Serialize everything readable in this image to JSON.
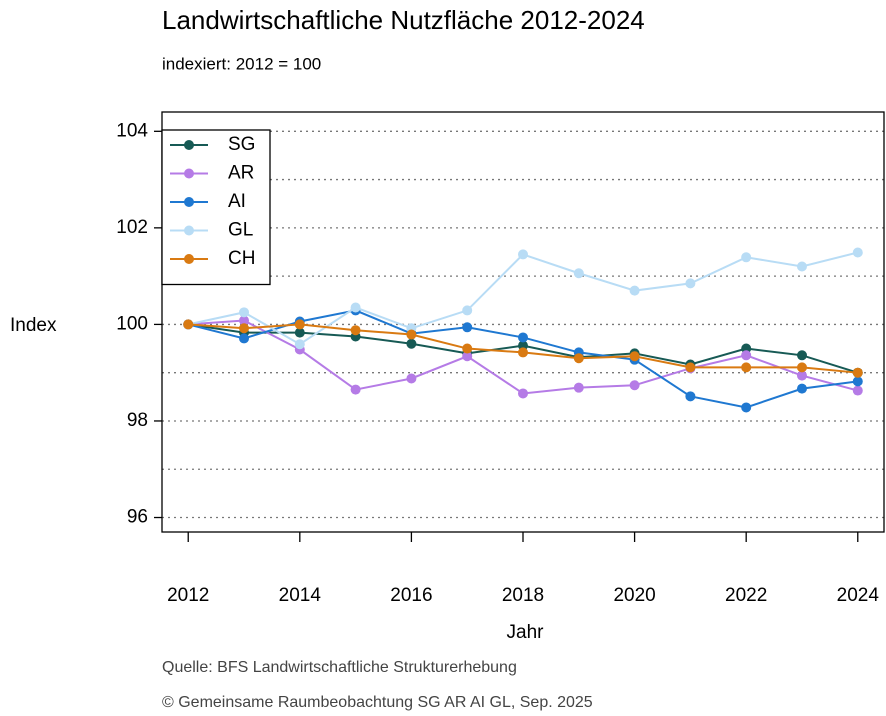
{
  "chart_data": {
    "type": "line",
    "title": "Landwirtschaftliche Nutzfläche 2012-2024",
    "subtitle": "indexiert:  2012 = 100",
    "x_label": "Jahr",
    "y_label": "Index",
    "source": "Quelle: BFS Landwirtschaftliche Strukturerhebung",
    "copyright": "© Gemeinsame Raumbeobachtung SG AR AI GL, Sep. 2025",
    "x": [
      2012,
      2013,
      2014,
      2015,
      2016,
      2017,
      2018,
      2019,
      2020,
      2021,
      2022,
      2023,
      2024
    ],
    "xlim": [
      2011.53,
      2024.47
    ],
    "xticks": [
      2012,
      2014,
      2016,
      2018,
      2020,
      2022,
      2024
    ],
    "ylim": [
      95.7,
      104.4
    ],
    "yticks": [
      96,
      98,
      100,
      102,
      104
    ],
    "ygrid": [
      96,
      97,
      98,
      99,
      100,
      101,
      102,
      103,
      104
    ],
    "grid": true,
    "legend": "top-left",
    "series": [
      {
        "name": "SG",
        "color": "#175a55",
        "values": [
          100,
          99.83,
          99.83,
          99.75,
          99.6,
          99.4,
          99.56,
          99.32,
          99.4,
          99.17,
          99.5,
          99.36,
          99.0
        ]
      },
      {
        "name": "AR",
        "color": "#b57be6",
        "values": [
          100,
          100.08,
          99.48,
          98.65,
          98.88,
          99.34,
          98.57,
          98.69,
          98.74,
          99.09,
          99.36,
          98.94,
          98.63
        ]
      },
      {
        "name": "AI",
        "color": "#1f78d1",
        "values": [
          100,
          99.71,
          100.06,
          100.29,
          99.81,
          99.94,
          99.73,
          99.42,
          99.27,
          98.51,
          98.28,
          98.67,
          98.82
        ]
      },
      {
        "name": "GL",
        "color": "#b8dcf5",
        "values": [
          100,
          100.25,
          99.59,
          100.35,
          99.92,
          100.29,
          101.45,
          101.06,
          100.7,
          100.85,
          101.39,
          101.2,
          101.49
        ]
      },
      {
        "name": "CH",
        "color": "#d97a12",
        "values": [
          100,
          99.92,
          100.0,
          99.88,
          99.79,
          99.5,
          99.42,
          99.3,
          99.34,
          99.11,
          99.11,
          99.11,
          99.0
        ]
      }
    ]
  }
}
